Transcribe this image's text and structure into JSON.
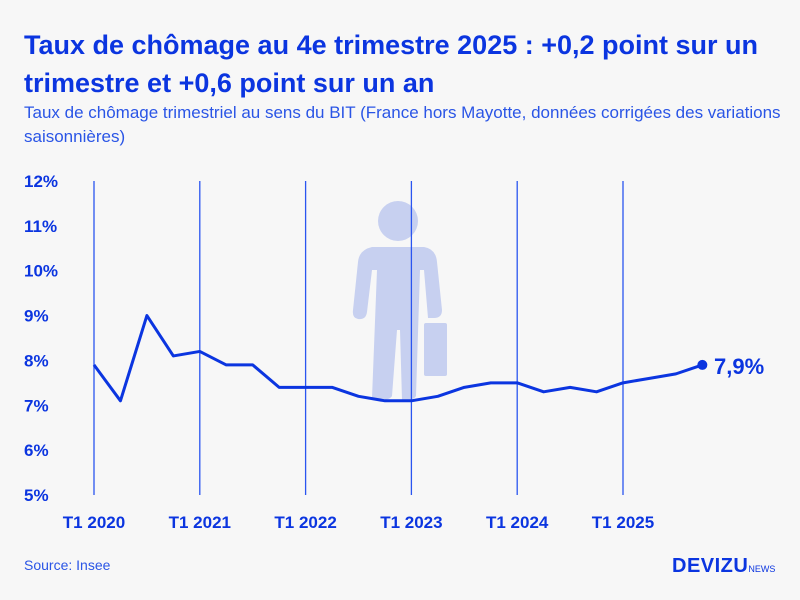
{
  "colors": {
    "accent": "#0b35e0",
    "figure": "#c7d0f0"
  },
  "chart_data": {
    "type": "line",
    "title": "Taux de chômage au 4e trimestre 2025 : +0,2 point sur un trimestre et +0,6 point sur un an",
    "subtitle": "Taux de chômage trimestriel au sens du BIT (France hors Mayotte, données corrigées des variations saisonnières)",
    "x": [
      "T1 2020",
      "T2 2020",
      "T3 2020",
      "T4 2020",
      "T1 2021",
      "T2 2021",
      "T3 2021",
      "T4 2021",
      "T1 2022",
      "T2 2022",
      "T3 2022",
      "T4 2022",
      "T1 2023",
      "T2 2023",
      "T3 2023",
      "T4 2023",
      "T1 2024",
      "T2 2024",
      "T3 2024",
      "T4 2024",
      "T1 2025",
      "T2 2025",
      "T3 2025",
      "T4 2025"
    ],
    "values": [
      7.9,
      7.1,
      9.0,
      8.1,
      8.2,
      7.9,
      7.9,
      7.4,
      7.4,
      7.4,
      7.2,
      7.1,
      7.1,
      7.2,
      7.4,
      7.5,
      7.5,
      7.3,
      7.4,
      7.3,
      7.5,
      7.6,
      7.7,
      7.9
    ],
    "ylim": [
      5,
      12
    ],
    "yticks": [
      "5%",
      "6%",
      "7%",
      "8%",
      "9%",
      "10%",
      "11%",
      "12%"
    ],
    "xticks": [
      "T1 2020",
      "T1 2021",
      "T1 2022",
      "T1 2023",
      "T1 2024",
      "T1 2025"
    ],
    "last_label": "7,9%",
    "grid": "vertical at T1"
  },
  "source": "Source: Insee",
  "logo": {
    "main": "DEVIZU",
    "suffix": "NEWS"
  }
}
